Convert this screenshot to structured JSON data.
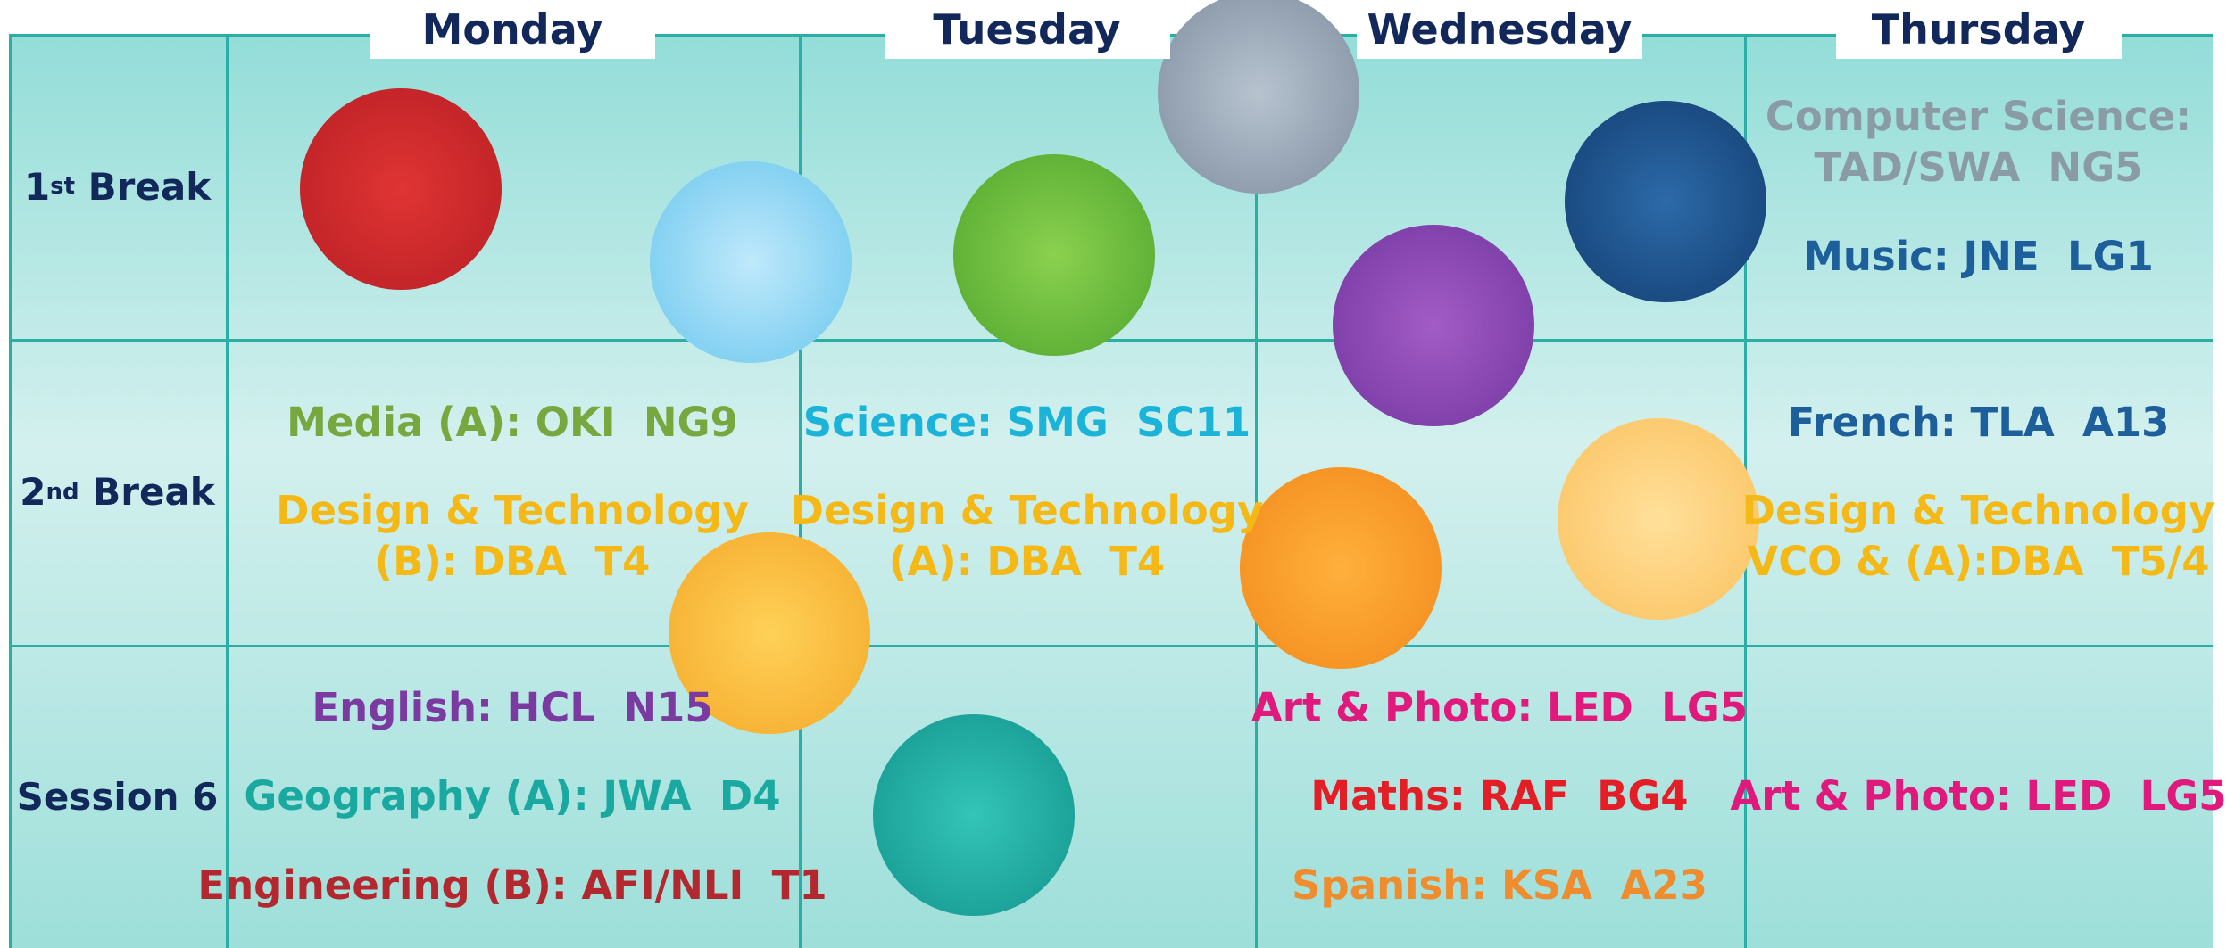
{
  "days": [
    "Monday",
    "Tuesday",
    "Wednesday",
    "Thursday"
  ],
  "rows": [
    {
      "label": {
        "number": "1",
        "suffix": "st",
        "text": "Break"
      },
      "cells": [
        [],
        [],
        [],
        [
          {
            "lines": [
              "Computer Science:",
              "TAD/SWA  NG5"
            ],
            "color": "#8a9ba6"
          },
          {
            "lines": [
              "Music: JNE  LG1"
            ],
            "color": "#1d5f9b"
          }
        ]
      ]
    },
    {
      "label": {
        "number": "2",
        "suffix": "nd",
        "text": "Break"
      },
      "cells": [
        [
          {
            "lines": [
              "Media (A): OKI  NG9"
            ],
            "color": "#77a83f"
          },
          {
            "lines": [
              "Design & Technology",
              "(B): DBA  T4"
            ],
            "color": "#f4b917"
          }
        ],
        [
          {
            "lines": [
              "Science: SMG  SC11"
            ],
            "color": "#1bb4d8"
          },
          {
            "lines": [
              "Design & Technology",
              "(A): DBA  T4"
            ],
            "color": "#f4b917"
          }
        ],
        [],
        [
          {
            "lines": [
              "French: TLA  A13"
            ],
            "color": "#1d5f9b"
          },
          {
            "lines": [
              "Design & Technology",
              "VCO & (A):DBA  T5/4"
            ],
            "color": "#f4b917"
          }
        ]
      ]
    },
    {
      "label": {
        "text": "Session 6"
      },
      "cells": [
        [
          {
            "lines": [
              "English: HCL  N15"
            ],
            "color": "#7a3aa0"
          },
          {
            "lines": [
              "Geography (A): JWA  D4"
            ],
            "color": "#1aa9a0"
          },
          {
            "lines": [
              "Engineering (B): AFI/NLI  T1"
            ],
            "color": "#b3282e"
          }
        ],
        [],
        [
          {
            "lines": [
              "Art & Photo: LED  LG5"
            ],
            "color": "#e0197d"
          },
          {
            "lines": [
              "Maths: RAF  BG4"
            ],
            "color": "#e31e26"
          },
          {
            "lines": [
              "Spanish: KSA  A23"
            ],
            "color": "#ee8c2e"
          }
        ],
        [
          {
            "lines": [
              "Art & Photo: LED  LG5"
            ],
            "color": "#e0197d"
          }
        ]
      ]
    }
  ]
}
